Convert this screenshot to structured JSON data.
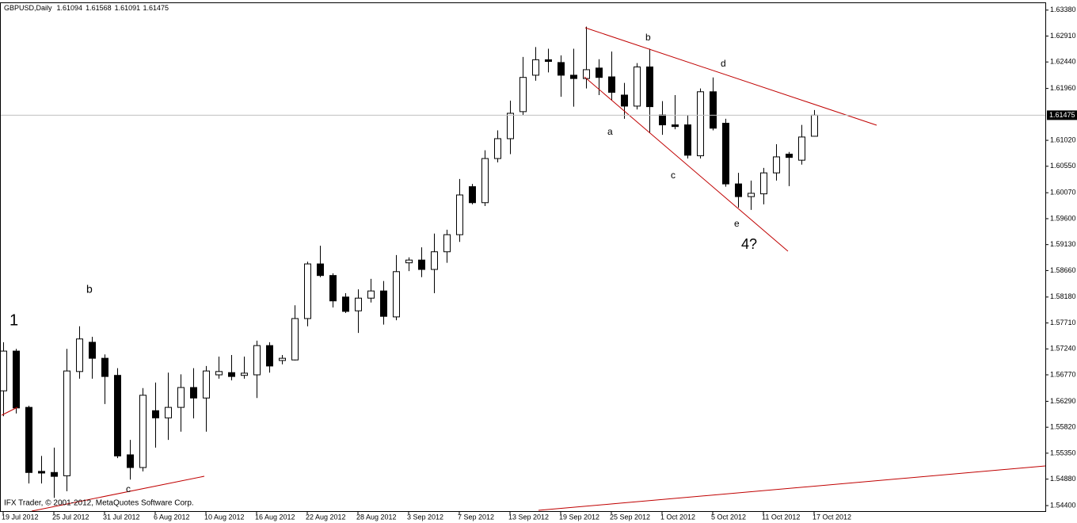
{
  "chart_data": {
    "type": "candlestick",
    "title": "GBPUSD,Daily",
    "categories": [
      "19 Jul 2012",
      null,
      null,
      null,
      "25 Jul 2012",
      null,
      null,
      null,
      "31 Jul 2012",
      null,
      null,
      null,
      "6 Aug 2012",
      null,
      null,
      null,
      "10 Aug 2012",
      null,
      null,
      null,
      "16 Aug 2012",
      null,
      null,
      null,
      "22 Aug 2012",
      null,
      null,
      null,
      "28 Aug 2012",
      null,
      null,
      null,
      "3 Sep 2012",
      null,
      null,
      null,
      "7 Sep 2012",
      null,
      null,
      null,
      "13 Sep 2012",
      null,
      null,
      null,
      "19 Sep 2012",
      null,
      null,
      null,
      "25 Sep 2012",
      null,
      null,
      null,
      "1 Oct 2012",
      null,
      null,
      null,
      "5 Oct 2012",
      null,
      null,
      null,
      "11 Oct 2012",
      null,
      null,
      null,
      "17 Oct 2012"
    ],
    "open": [
      1.5648,
      1.572,
      1.5618,
      1.5502,
      1.55,
      1.5494,
      1.5683,
      1.5736,
      1.5707,
      1.5676,
      1.5532,
      1.5509,
      1.5612,
      1.5599,
      1.5618,
      1.5654,
      1.5635,
      1.5677,
      1.5681,
      1.5676,
      1.5677,
      1.573,
      1.5703,
      1.5704,
      1.5779,
      1.5878,
      1.5857,
      1.5818,
      1.5793,
      1.5816,
      1.5829,
      1.5782,
      1.588,
      1.5885,
      1.5868,
      1.59,
      1.5931,
      1.6018,
      1.5989,
      1.6069,
      1.6105,
      1.6154,
      1.622,
      1.6248,
      1.6243,
      1.622,
      1.6214,
      1.6233,
      1.6217,
      1.6184,
      1.6164,
      1.6235,
      1.6148,
      1.613,
      1.613,
      1.6074,
      1.619,
      1.6133,
      1.6023,
      1.6,
      1.6005,
      1.6043,
      1.6077,
      1.6066,
      1.61094
    ],
    "high": [
      1.5736,
      1.5724,
      1.5621,
      1.553,
      1.5545,
      1.5724,
      1.5765,
      1.5746,
      1.5714,
      1.5689,
      1.5559,
      1.5653,
      1.5663,
      1.5681,
      1.5678,
      1.5689,
      1.5693,
      1.571,
      1.5713,
      1.571,
      1.5739,
      1.5736,
      1.5713,
      1.5803,
      1.5882,
      1.5911,
      1.5861,
      1.5825,
      1.5832,
      1.5851,
      1.5847,
      1.5894,
      1.589,
      1.5908,
      1.5933,
      1.594,
      1.6032,
      1.6023,
      1.6084,
      1.612,
      1.6174,
      1.6253,
      1.6271,
      1.6268,
      1.6256,
      1.6268,
      1.6308,
      1.6249,
      1.6263,
      1.6206,
      1.6242,
      1.6268,
      1.6173,
      1.6184,
      1.6148,
      1.6196,
      1.6216,
      1.6141,
      1.6043,
      1.6029,
      1.6052,
      1.6095,
      1.6081,
      1.613,
      1.61568
    ],
    "low": [
      1.5602,
      1.5607,
      1.548,
      1.548,
      1.5454,
      1.5466,
      1.567,
      1.567,
      1.5624,
      1.5526,
      1.5487,
      1.5502,
      1.5545,
      1.5559,
      1.5574,
      1.5598,
      1.5574,
      1.567,
      1.5667,
      1.567,
      1.5635,
      1.5681,
      1.5696,
      1.5703,
      1.5765,
      1.5854,
      1.5799,
      1.5789,
      1.5753,
      1.5808,
      1.5768,
      1.5776,
      1.5865,
      1.5854,
      1.5825,
      1.588,
      1.5918,
      1.5986,
      1.5983,
      1.6062,
      1.6077,
      1.6148,
      1.621,
      1.6225,
      1.6181,
      1.6163,
      1.6196,
      1.6184,
      1.6174,
      1.6141,
      1.6158,
      1.6115,
      1.6112,
      1.6122,
      1.6069,
      1.6069,
      1.612,
      1.6018,
      1.598,
      1.5976,
      1.5986,
      1.6029,
      1.6019,
      1.6058,
      1.61091
    ],
    "close": [
      1.572,
      1.5617,
      1.55,
      1.5499,
      1.5493,
      1.5684,
      1.5742,
      1.5707,
      1.5674,
      1.553,
      1.5509,
      1.564,
      1.5599,
      1.5618,
      1.5654,
      1.5635,
      1.5684,
      1.5683,
      1.5674,
      1.568,
      1.573,
      1.5693,
      1.5707,
      1.5779,
      1.5878,
      1.5857,
      1.5811,
      1.5792,
      1.5816,
      1.5829,
      1.5783,
      1.5864,
      1.5885,
      1.5868,
      1.59,
      1.5931,
      1.6003,
      1.5989,
      1.6069,
      1.6105,
      1.6151,
      1.6216,
      1.6248,
      1.6245,
      1.622,
      1.6214,
      1.623,
      1.6216,
      1.6189,
      1.6164,
      1.6235,
      1.6163,
      1.613,
      1.6127,
      1.6075,
      1.619,
      1.6124,
      1.6023,
      1.6,
      1.6006,
      1.6043,
      1.6072,
      1.6071,
      1.6108,
      1.61475
    ],
    "up_color": "#ffffff",
    "down_color": "#000000",
    "ylim": [
      1.543,
      1.6352
    ],
    "yticks": [
      {
        "value": 1.6338,
        "label": "1.63380"
      },
      {
        "value": 1.6291,
        "label": "1.62910"
      },
      {
        "value": 1.6244,
        "label": "1.62440"
      },
      {
        "value": 1.6196,
        "label": "1.61960"
      },
      {
        "value": 1.6102,
        "label": "1.61020"
      },
      {
        "value": 1.6055,
        "label": "1.60550"
      },
      {
        "value": 1.6007,
        "label": "1.60070"
      },
      {
        "value": 1.596,
        "label": "1.59600"
      },
      {
        "value": 1.5913,
        "label": "1.59130"
      },
      {
        "value": 1.5866,
        "label": "1.58660"
      },
      {
        "value": 1.5818,
        "label": "1.58180"
      },
      {
        "value": 1.5771,
        "label": "1.57710"
      },
      {
        "value": 1.5724,
        "label": "1.57240"
      },
      {
        "value": 1.5677,
        "label": "1.56770"
      },
      {
        "value": 1.5629,
        "label": "1.56290"
      },
      {
        "value": 1.5582,
        "label": "1.55820"
      },
      {
        "value": 1.5535,
        "label": "1.55350"
      },
      {
        "value": 1.5488,
        "label": "1.54880"
      },
      {
        "value": 1.544,
        "label": "1.54400"
      }
    ],
    "grid": false,
    "annotations": [
      "b",
      "d",
      "a",
      "c",
      "e",
      "4?",
      "b",
      "1",
      "c"
    ],
    "footer": "IFX Trader, © 2001-2012, MetaQuotes Software Corp."
  }
}
